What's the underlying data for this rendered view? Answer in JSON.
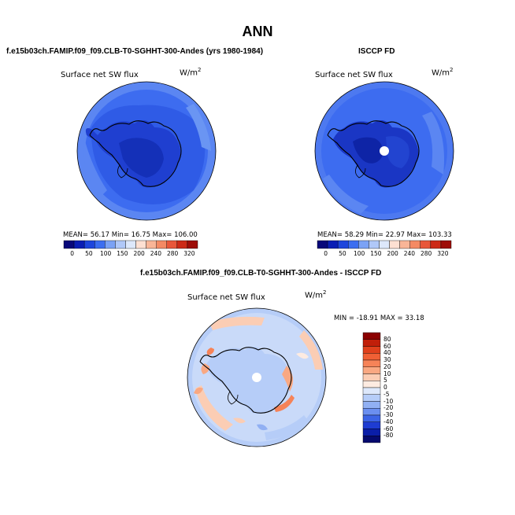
{
  "title": "ANN",
  "panel_left": {
    "case": "f.e15b03ch.FAMIP.f09_f09.CLB-T0-SGHHT-300-Andes (yrs 1980-1984)",
    "variable": "Surface net SW flux",
    "units_base": "W/m",
    "units_sup": "2",
    "stats": "MEAN=   56.17   Min=   16.75   Max= 106.00"
  },
  "panel_right": {
    "case": "ISCCP FD",
    "variable": "Surface net SW flux",
    "units_base": "W/m",
    "units_sup": "2",
    "stats": "MEAN=   58.29   Min=   22.97   Max=  103.33"
  },
  "panel_diff": {
    "case": "f.e15b03ch.FAMIP.f09_f09.CLB-T0-SGHHT-300-Andes - ISCCP FD",
    "variable": "Surface net SW flux",
    "units_base": "W/m",
    "units_sup": "2",
    "stats": "MIN = -18.91  MAX =  33.18"
  },
  "colorbar_abs": {
    "ticks": [
      "0",
      "50",
      "100",
      "150",
      "200",
      "240",
      "280",
      "320"
    ],
    "colors": [
      "#08087a",
      "#0a1eb4",
      "#1e46dc",
      "#3c6ef0",
      "#7ba2f5",
      "#b0c8f8",
      "#dde8fb",
      "#fde0d2",
      "#f9b597",
      "#f48a64",
      "#e8573a",
      "#cc2a17",
      "#9e0d08"
    ]
  },
  "colorbar_diff": {
    "labels": [
      "80",
      "60",
      "40",
      "30",
      "20",
      "10",
      "5",
      "0",
      "-5",
      "-10",
      "-20",
      "-30",
      "-40",
      "-60",
      "-80"
    ],
    "colors": [
      "#8b0000",
      "#c11f0a",
      "#e0401c",
      "#f06035",
      "#f68358",
      "#f9a882",
      "#fbcdb4",
      "#fdebe1",
      "#dde8fb",
      "#b6cdf8",
      "#91b0f3",
      "#6b8ff0",
      "#3c64e6",
      "#1e3cd2",
      "#0a1ea8",
      "#050a6e"
    ]
  }
}
